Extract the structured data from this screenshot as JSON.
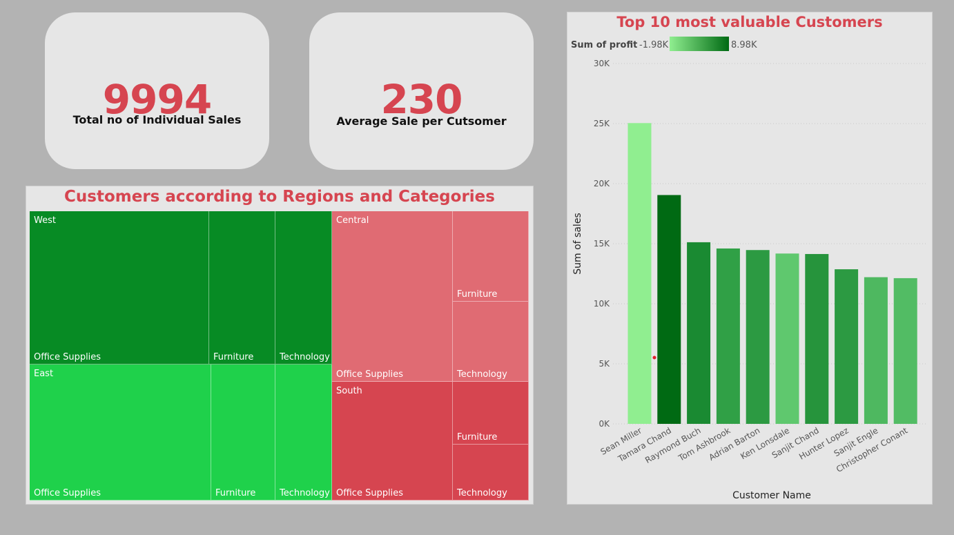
{
  "kpis": [
    {
      "value": "9994",
      "label": "Total no of Individual Sales"
    },
    {
      "value": "230",
      "label": "Average Sale per Cutsomer"
    }
  ],
  "treemap": {
    "title": "Customers according to Regions and Categories",
    "regions": [
      {
        "name": "West",
        "color": "#078b24",
        "categories": [
          "Office Supplies",
          "Furniture",
          "Technology"
        ]
      },
      {
        "name": "East",
        "color": "#1fd14b",
        "categories": [
          "Office Supplies",
          "Furniture",
          "Technology"
        ]
      },
      {
        "name": "Central",
        "color": "#e06b73",
        "categories": [
          "Office Supplies",
          "Furniture",
          "Technology"
        ]
      },
      {
        "name": "South",
        "color": "#d64550",
        "categories": [
          "Office Supplies",
          "Furniture",
          "Technology"
        ]
      }
    ]
  },
  "chart_data": {
    "type": "bar",
    "title": "Top 10 most valuable Customers",
    "xlabel": "Customer Name",
    "ylabel": "Sum of sales",
    "ylim": [
      0,
      30000
    ],
    "yticks": [
      "0K",
      "5K",
      "10K",
      "15K",
      "20K",
      "25K",
      "30K"
    ],
    "grid": true,
    "legend": {
      "title": "Sum of profit",
      "min_label": "-1.98K",
      "max_label": "8.98K",
      "min_color": "#90ee90",
      "max_color": "#006a13",
      "position": "top-left"
    },
    "categories": [
      "Sean Miller",
      "Tamara Chand",
      "Raymond Buch",
      "Tom Ashbrook",
      "Adrian Barton",
      "Ken Lonsdale",
      "Sanjit Chand",
      "Hunter Lopez",
      "Sanjit Engle",
      "Christopher Conant"
    ],
    "values": [
      25040,
      19050,
      15120,
      14600,
      14470,
      14180,
      14140,
      12870,
      12210,
      12130
    ],
    "colors": [
      "#90ee90",
      "#006a13",
      "#1a8a32",
      "#30a046",
      "#2c9a42",
      "#5fc86e",
      "#26943c",
      "#2c9a42",
      "#4eb860",
      "#52bc64"
    ]
  }
}
